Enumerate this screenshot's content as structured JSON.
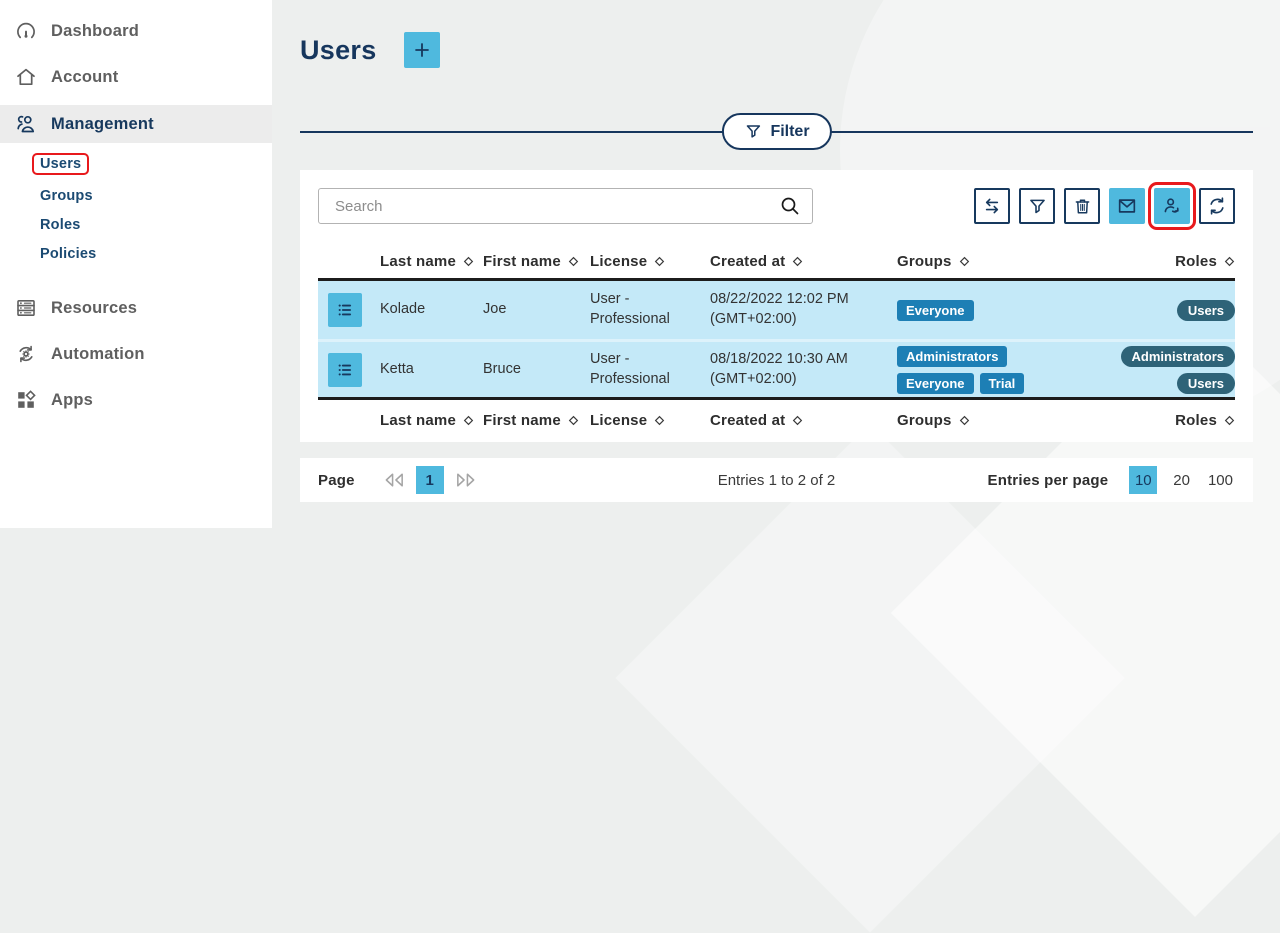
{
  "colors": {
    "accent_blue": "#4fb9de",
    "navy": "#17395e",
    "row_selected": "#c4e9f8",
    "group_badge": "#1d7fb5",
    "role_badge": "#2e6378",
    "highlight_red": "#e8191c",
    "background": "#edefee"
  },
  "sidebar": {
    "items": [
      {
        "label": "Dashboard",
        "icon": "gauge-icon"
      },
      {
        "label": "Account",
        "icon": "home-icon"
      },
      {
        "label": "Management",
        "icon": "users-group-icon",
        "active": true,
        "children": [
          {
            "label": "Users",
            "highlighted": true
          },
          {
            "label": "Groups"
          },
          {
            "label": "Roles"
          },
          {
            "label": "Policies"
          }
        ]
      },
      {
        "label": "Resources",
        "icon": "server-icon"
      },
      {
        "label": "Automation",
        "icon": "automation-icon"
      },
      {
        "label": "Apps",
        "icon": "apps-icon"
      }
    ]
  },
  "header": {
    "title": "Users"
  },
  "filter": {
    "label": "Filter"
  },
  "search": {
    "placeholder": "Search",
    "value": ""
  },
  "toolbar": [
    {
      "name": "swap-columns",
      "style": "outline",
      "icon": "swap-arrows-icon"
    },
    {
      "name": "filter",
      "style": "outline",
      "icon": "funnel-icon"
    },
    {
      "name": "delete",
      "style": "outline",
      "icon": "trash-icon"
    },
    {
      "name": "mail",
      "style": "filled",
      "icon": "envelope-icon"
    },
    {
      "name": "assign-user",
      "style": "filled",
      "icon": "user-arrow-icon",
      "highlighted": true
    },
    {
      "name": "refresh",
      "style": "outline",
      "icon": "refresh-icon"
    }
  ],
  "table": {
    "columns": [
      "Last name",
      "First name",
      "License",
      "Created at",
      "Groups",
      "Roles"
    ],
    "rows": [
      {
        "last_name": "Kolade",
        "first_name": "Joe",
        "license": "User - Professional",
        "created_at": "08/22/2022 12:02 PM (GMT+02:00)",
        "groups": [
          "Everyone"
        ],
        "roles": [
          "Users"
        ]
      },
      {
        "last_name": "Ketta",
        "first_name": "Bruce",
        "license": "User - Professional",
        "created_at": "08/18/2022 10:30 AM (GMT+02:00)",
        "groups": [
          "Administrators",
          "Everyone",
          "Trial"
        ],
        "roles": [
          "Administrators",
          "Users"
        ]
      }
    ]
  },
  "pagination": {
    "page_label": "Page",
    "current_page": "1",
    "entries_text": "Entries 1 to 2 of 2",
    "entries_per_page_label": "Entries per page",
    "page_sizes": [
      "10",
      "20",
      "100"
    ],
    "selected_page_size": "10"
  }
}
